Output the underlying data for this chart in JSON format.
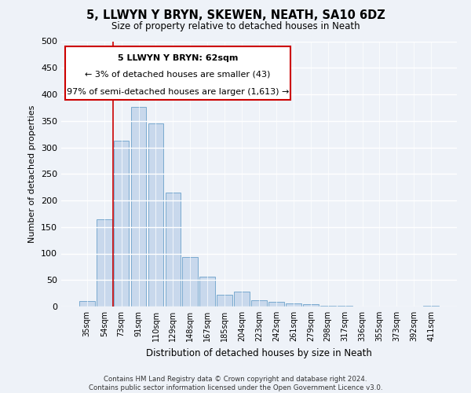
{
  "title": "5, LLWYN Y BRYN, SKEWEN, NEATH, SA10 6DZ",
  "subtitle": "Size of property relative to detached houses in Neath",
  "xlabel": "Distribution of detached houses by size in Neath",
  "ylabel": "Number of detached properties",
  "bar_labels": [
    "35sqm",
    "54sqm",
    "73sqm",
    "91sqm",
    "110sqm",
    "129sqm",
    "148sqm",
    "167sqm",
    "185sqm",
    "204sqm",
    "223sqm",
    "242sqm",
    "261sqm",
    "279sqm",
    "298sqm",
    "317sqm",
    "336sqm",
    "355sqm",
    "373sqm",
    "392sqm",
    "411sqm"
  ],
  "bar_values": [
    10,
    165,
    313,
    377,
    345,
    215,
    93,
    56,
    22,
    28,
    12,
    9,
    6,
    4,
    2,
    1,
    0,
    0,
    0,
    0,
    2
  ],
  "bar_color": "#c8d8ec",
  "bar_edge_color": "#7aaacf",
  "ylim": [
    0,
    500
  ],
  "yticks": [
    0,
    50,
    100,
    150,
    200,
    250,
    300,
    350,
    400,
    450,
    500
  ],
  "vline_color": "#cc0000",
  "vline_x": 1.5,
  "annotation_text_line1": "5 LLWYN Y BRYN: 62sqm",
  "annotation_text_line2": "← 3% of detached houses are smaller (43)",
  "annotation_text_line3": "97% of semi-detached houses are larger (1,613) →",
  "annotation_box_edge": "#cc0000",
  "footer_line1": "Contains HM Land Registry data © Crown copyright and database right 2024.",
  "footer_line2": "Contains public sector information licensed under the Open Government Licence v3.0.",
  "bg_color": "#eef2f8",
  "plot_bg_color": "#eef2f8"
}
